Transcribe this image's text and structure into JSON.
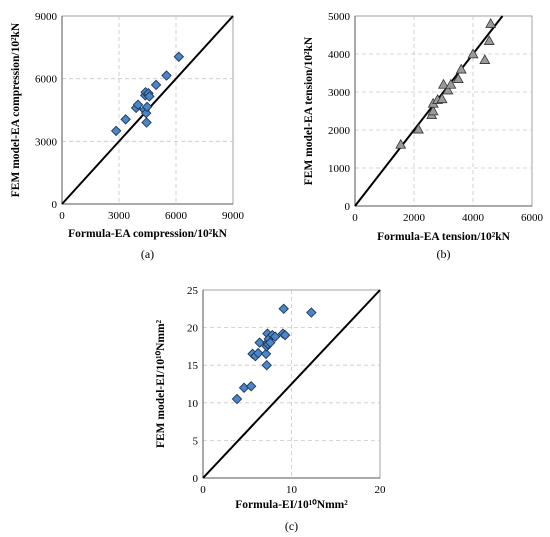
{
  "chart_data": [
    {
      "id": "a",
      "type": "scatter",
      "caption": "(a)",
      "xlabel": "Formula-EA compression/10²kN",
      "ylabel": "FEM model-EA compression/10²kN",
      "xlim": [
        0,
        9000
      ],
      "ylim": [
        0,
        9000
      ],
      "xticks": [
        "0",
        "3000",
        "6000",
        "9000"
      ],
      "yticks": [
        "0",
        "3000",
        "6000",
        "9000"
      ],
      "marker": "diamond",
      "marker_color": "#4a86c8",
      "grid": true,
      "reference_line": "y = x",
      "points": [
        {
          "x": 2850,
          "y": 3500
        },
        {
          "x": 3350,
          "y": 4050
        },
        {
          "x": 3900,
          "y": 4600
        },
        {
          "x": 4000,
          "y": 4750
        },
        {
          "x": 4350,
          "y": 4500
        },
        {
          "x": 4380,
          "y": 5200
        },
        {
          "x": 4400,
          "y": 5350
        },
        {
          "x": 4430,
          "y": 4350
        },
        {
          "x": 4450,
          "y": 3900
        },
        {
          "x": 4480,
          "y": 4650
        },
        {
          "x": 4550,
          "y": 5300
        },
        {
          "x": 4600,
          "y": 5150
        },
        {
          "x": 4950,
          "y": 5700
        },
        {
          "x": 5500,
          "y": 6150
        },
        {
          "x": 6150,
          "y": 7050
        }
      ]
    },
    {
      "id": "b",
      "type": "scatter",
      "caption": "(b)",
      "xlabel": "Formula-EA tension/10²kN",
      "ylabel": "FEM model-EA tension/10²kN",
      "xlim": [
        0,
        6000
      ],
      "ylim": [
        0,
        5000
      ],
      "xticks": [
        "0",
        "2000",
        "4000",
        "6000"
      ],
      "yticks": [
        "0",
        "1000",
        "2000",
        "3000",
        "4000",
        "5000"
      ],
      "marker": "triangle",
      "marker_color": "#9a9a9a",
      "grid": true,
      "reference_line": "y = x",
      "points": [
        {
          "x": 1550,
          "y": 1620
        },
        {
          "x": 2150,
          "y": 2020
        },
        {
          "x": 2600,
          "y": 2400
        },
        {
          "x": 2650,
          "y": 2500
        },
        {
          "x": 2650,
          "y": 2700
        },
        {
          "x": 2800,
          "y": 2800
        },
        {
          "x": 2950,
          "y": 2820
        },
        {
          "x": 3000,
          "y": 3200
        },
        {
          "x": 3150,
          "y": 3050
        },
        {
          "x": 3250,
          "y": 3200
        },
        {
          "x": 3500,
          "y": 3350
        },
        {
          "x": 3600,
          "y": 3600
        },
        {
          "x": 4000,
          "y": 4000
        },
        {
          "x": 4400,
          "y": 3850
        },
        {
          "x": 4550,
          "y": 4350
        },
        {
          "x": 4600,
          "y": 4800
        }
      ]
    },
    {
      "id": "c",
      "type": "scatter",
      "caption": "(c)",
      "xlabel": "Formula-EI/10¹⁰Nmm²",
      "ylabel": "FEM model-EI/10¹⁰Nmm²",
      "xlim": [
        0,
        25
      ],
      "ylim": [
        0,
        25
      ],
      "xticks": [
        "0",
        "10",
        "20"
      ],
      "yticks": [
        "0",
        "5",
        "10",
        "15",
        "20",
        "25"
      ],
      "marker": "diamond",
      "marker_color": "#4a86c8",
      "grid": true,
      "reference_line": "y = x",
      "points": [
        {
          "x": 4.8,
          "y": 10.5
        },
        {
          "x": 5.8,
          "y": 12.0
        },
        {
          "x": 6.8,
          "y": 12.2
        },
        {
          "x": 7.0,
          "y": 16.5
        },
        {
          "x": 7.4,
          "y": 16.2
        },
        {
          "x": 7.8,
          "y": 16.6
        },
        {
          "x": 8.0,
          "y": 18.0
        },
        {
          "x": 8.9,
          "y": 16.5
        },
        {
          "x": 9.0,
          "y": 15.0
        },
        {
          "x": 9.0,
          "y": 17.5
        },
        {
          "x": 9.1,
          "y": 18.0
        },
        {
          "x": 9.1,
          "y": 19.2
        },
        {
          "x": 9.2,
          "y": 17.8
        },
        {
          "x": 9.3,
          "y": 18.5
        },
        {
          "x": 9.5,
          "y": 18.0
        },
        {
          "x": 9.8,
          "y": 19.0
        },
        {
          "x": 10.2,
          "y": 18.8
        },
        {
          "x": 11.3,
          "y": 19.2
        },
        {
          "x": 11.4,
          "y": 22.5
        },
        {
          "x": 11.6,
          "y": 19.0
        },
        {
          "x": 15.3,
          "y": 22.0
        }
      ]
    }
  ]
}
